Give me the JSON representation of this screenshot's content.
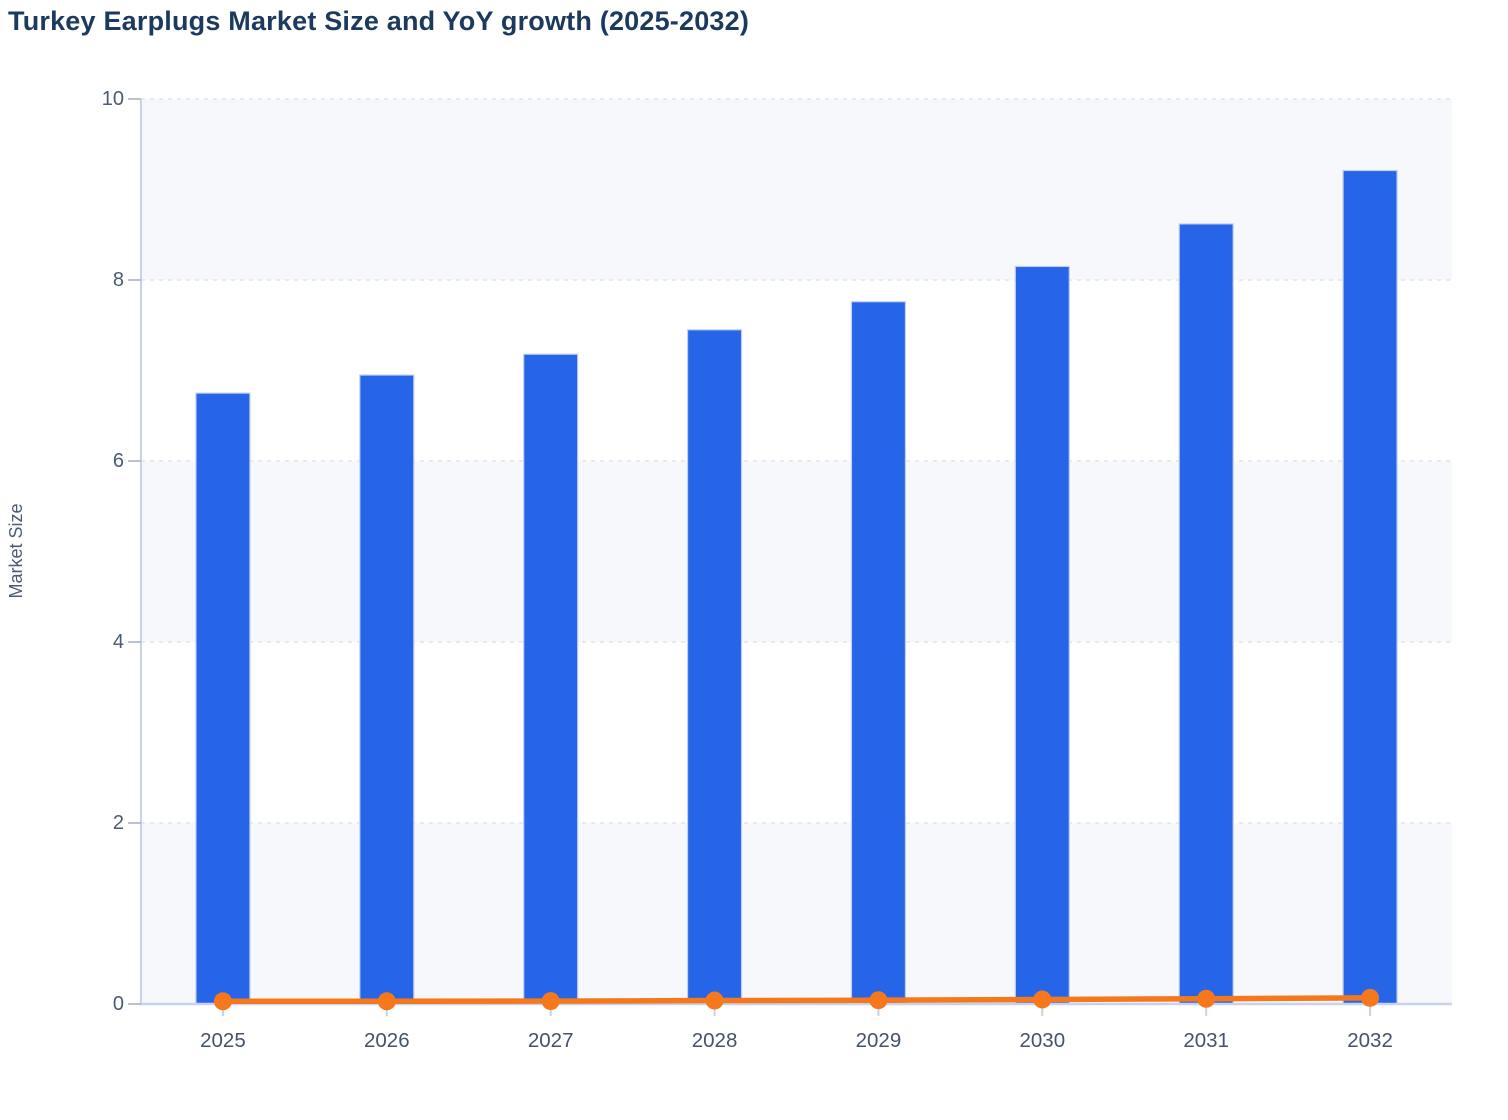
{
  "chart_data": {
    "type": "bar",
    "title": "Turkey Earplugs Market Size and YoY growth (2025-2032)",
    "categories": [
      "2025",
      "2026",
      "2027",
      "2028",
      "2029",
      "2030",
      "2031",
      "2032"
    ],
    "series": [
      {
        "name": "Market Size",
        "render": "bar",
        "color": "#2765e8",
        "values": [
          6.75,
          6.95,
          7.18,
          7.45,
          7.76,
          8.15,
          8.62,
          9.21
        ]
      },
      {
        "name": "YoY growth",
        "render": "line",
        "color": "#f5781d",
        "values": [
          0.03,
          0.03,
          0.032,
          0.038,
          0.042,
          0.05,
          0.058,
          0.068
        ]
      }
    ],
    "xlabel": "",
    "ylabel": "Market Size",
    "ylim": [
      0,
      10
    ],
    "yticks": [
      0,
      2,
      4,
      6,
      8,
      10
    ],
    "grid": "horizontal-dashed",
    "legend": "none",
    "background_bands": "alternating rows, gray between 10-8, 6-4, 2-0"
  },
  "style": {
    "title_color": "#1b3a5e",
    "tick_label_color": "#4b5b74",
    "x_label_color": "#44536b",
    "bar_color": "#2765e8",
    "bar_border_color": "#c3cff2",
    "line_color": "#f5781d",
    "axis_color": "#c8d2ec",
    "y_tick_mark_color": "#a9b2c6",
    "grid_color": "#e1e4ea",
    "band_color": "#f7f8fb",
    "background": "#ffffff"
  }
}
